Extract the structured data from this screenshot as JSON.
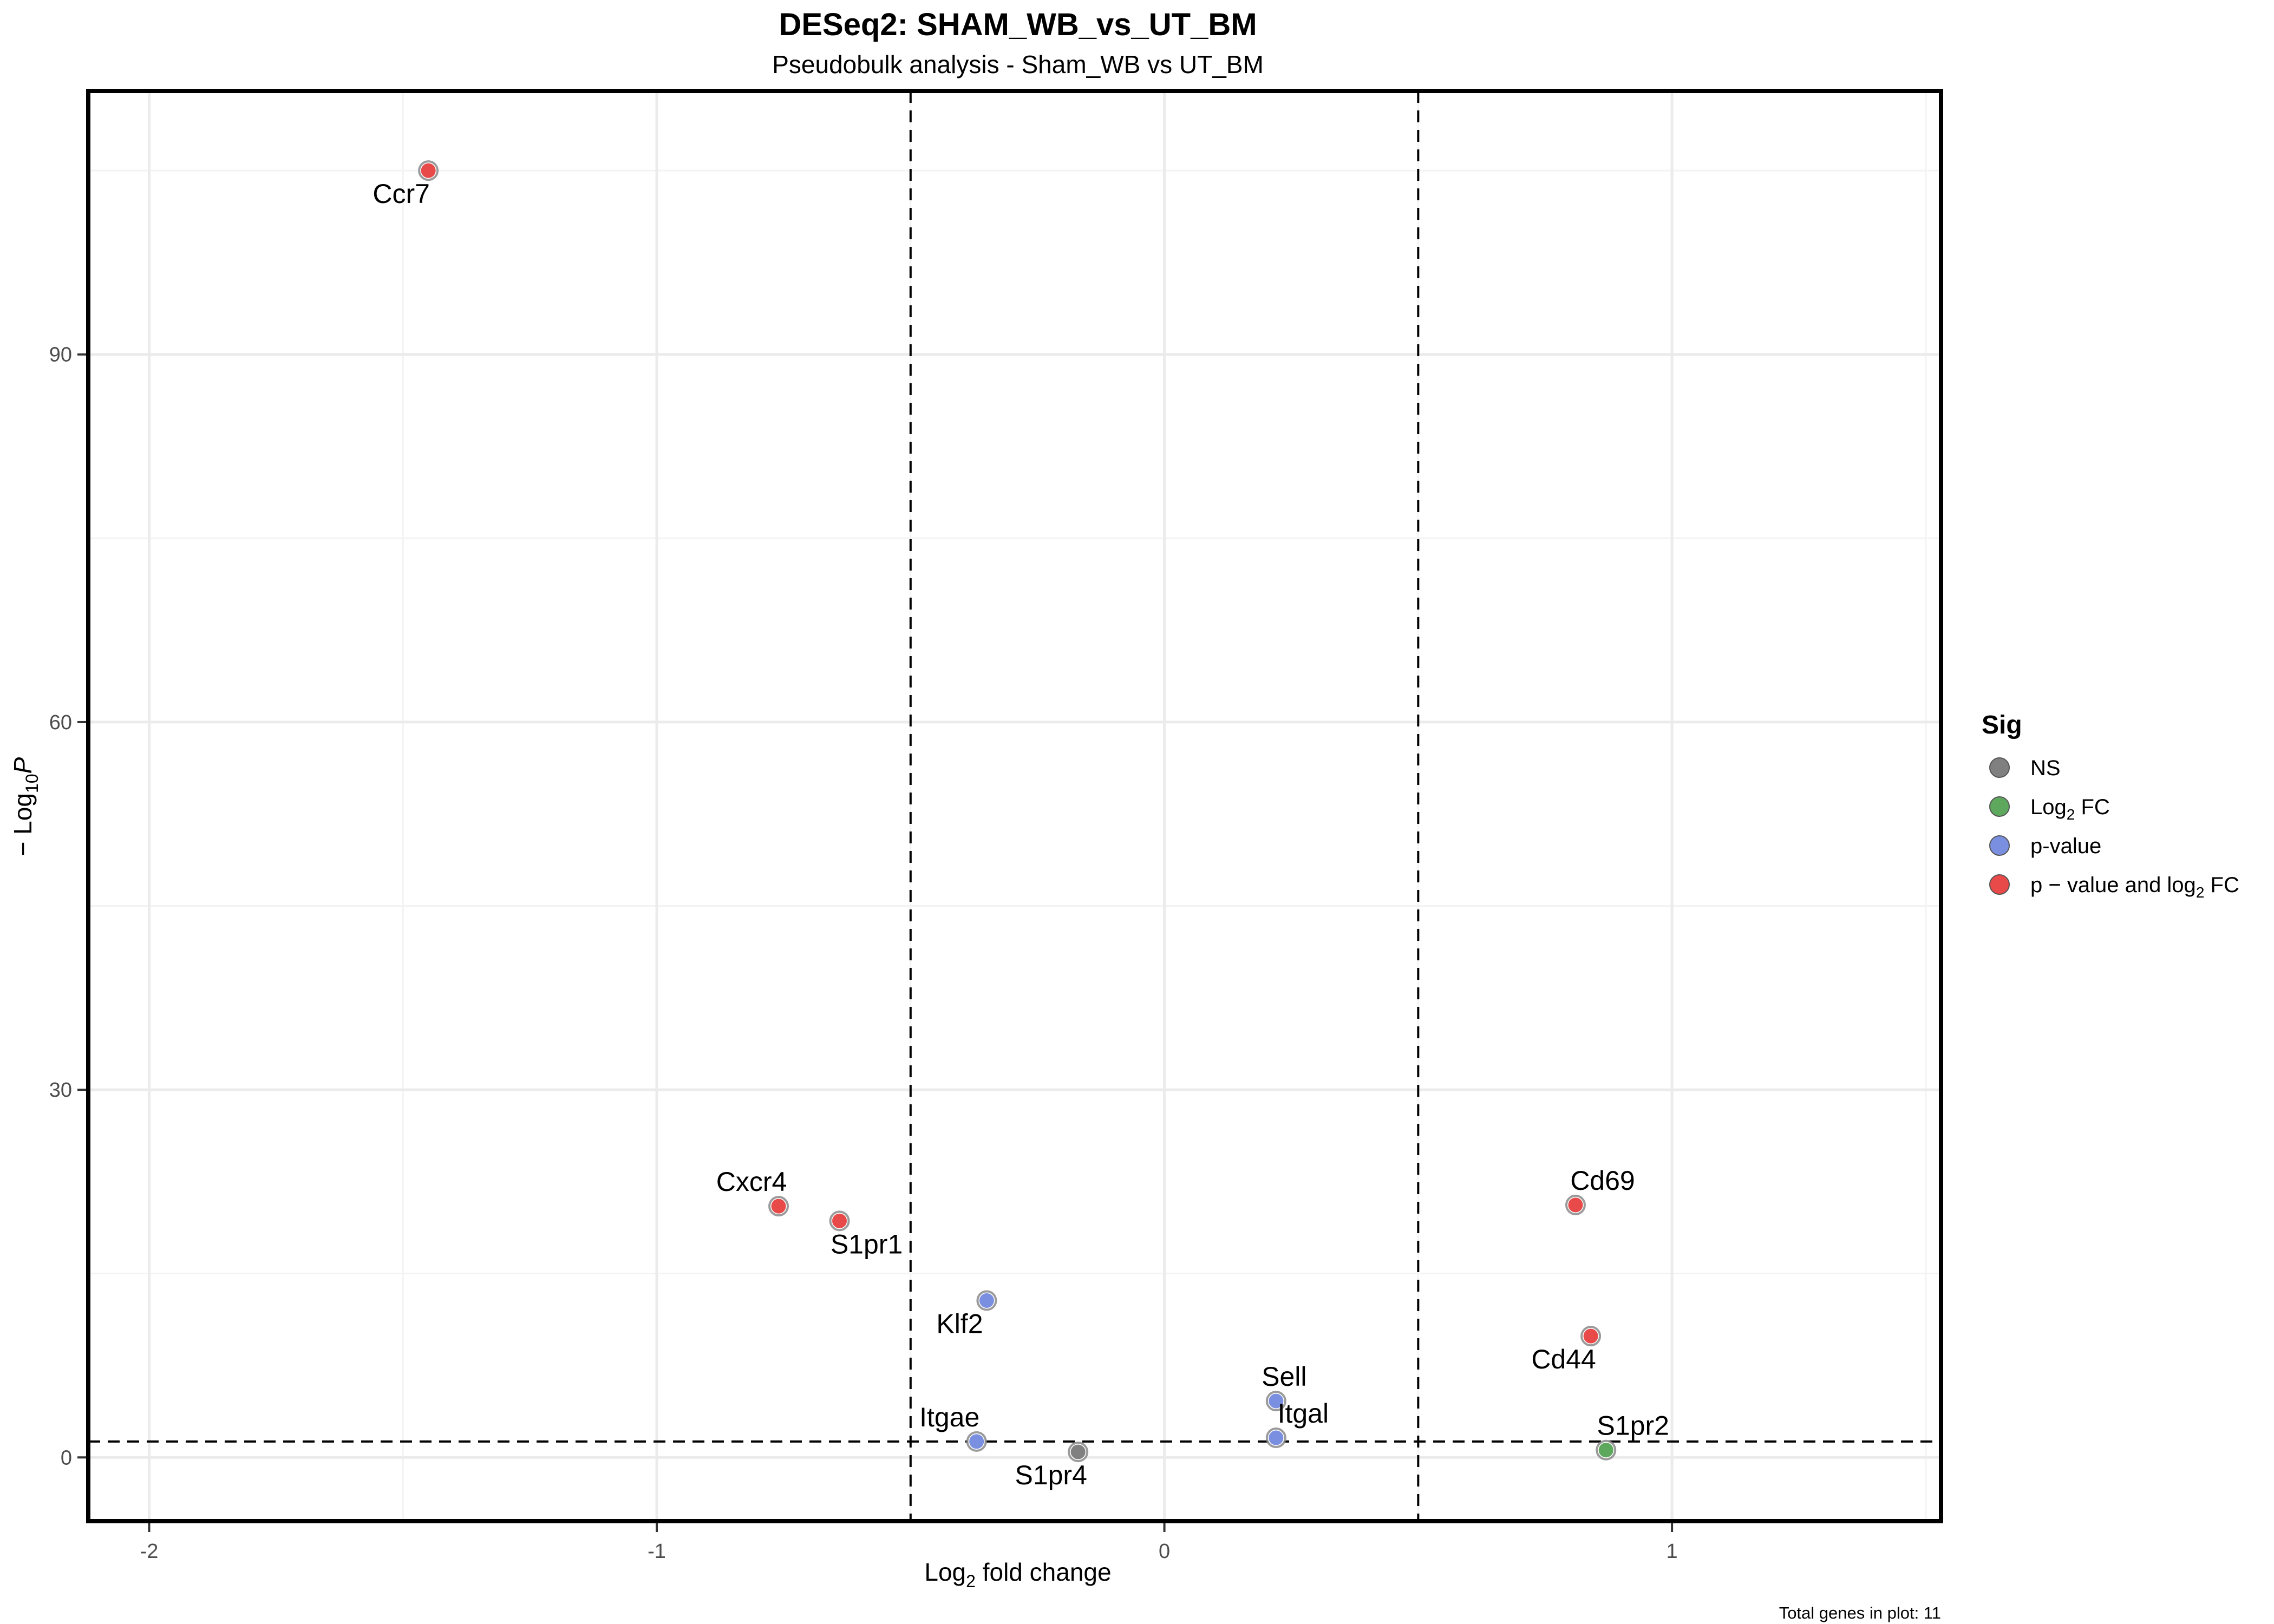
{
  "chart_data": {
    "type": "scatter",
    "title": "DESeq2: SHAM_WB_vs_UT_BM",
    "subtitle": "Pseudobulk analysis - Sham_WB vs UT_BM",
    "xlabel_main": "Log",
    "xlabel_sub": "2",
    "xlabel_rest": " fold change",
    "ylabel_prefix": "− Log",
    "ylabel_sub": "10",
    "ylabel_var": "P",
    "xlim": [
      -2.12,
      1.53
    ],
    "ylim": [
      -5.2,
      111.5
    ],
    "x_ticks": [
      -2,
      -1,
      0,
      1
    ],
    "y_ticks": [
      0,
      30,
      60,
      90
    ],
    "x_tick_labels": [
      "-2",
      "-1",
      "0",
      "1"
    ],
    "y_tick_labels": [
      "0",
      "30",
      "60",
      "90"
    ],
    "grid": true,
    "fc_cutoff": 0.5,
    "p_cutoff_neglog10": 1.3,
    "legend": {
      "title": "Sig",
      "position": "right",
      "items": [
        {
          "key": "NS",
          "parts": [
            "NS",
            "",
            ""
          ],
          "color": "#808080"
        },
        {
          "key": "Log2FC",
          "parts": [
            "Log",
            "2",
            " FC"
          ],
          "color": "#5ea85e"
        },
        {
          "key": "p-value",
          "parts": [
            "p-value",
            "",
            ""
          ],
          "color": "#7b8fe0"
        },
        {
          "key": "both",
          "parts": [
            "p − value and log",
            "2",
            " FC"
          ],
          "color": "#e84a4a"
        }
      ]
    },
    "colors": {
      "NS": "#808080",
      "Log2FC": "#5ea85e",
      "p-value": "#7b8fe0",
      "both": "#e84a4a"
    },
    "points": [
      {
        "gene": "Ccr7",
        "x": -1.45,
        "y": 105.0,
        "sig": "both",
        "label_pos": "below-left"
      },
      {
        "gene": "Cxcr4",
        "x": -0.76,
        "y": 20.5,
        "sig": "both",
        "label_pos": "above-left"
      },
      {
        "gene": "S1pr1",
        "x": -0.64,
        "y": 19.3,
        "sig": "both",
        "label_pos": "below-right"
      },
      {
        "gene": "Klf2",
        "x": -0.35,
        "y": 12.8,
        "sig": "p-value",
        "label_pos": "below-left"
      },
      {
        "gene": "Itgae",
        "x": -0.37,
        "y": 1.3,
        "sig": "p-value",
        "label_pos": "above-left"
      },
      {
        "gene": "S1pr4",
        "x": -0.17,
        "y": 0.45,
        "sig": "NS",
        "label_pos": "below-left"
      },
      {
        "gene": "Sell",
        "x": 0.22,
        "y": 4.6,
        "sig": "p-value",
        "label_pos": "above"
      },
      {
        "gene": "Itgal",
        "x": 0.22,
        "y": 1.6,
        "sig": "p-value",
        "label_pos": "above-right"
      },
      {
        "gene": "Cd69",
        "x": 0.81,
        "y": 20.6,
        "sig": "both",
        "label_pos": "above-right"
      },
      {
        "gene": "Cd44",
        "x": 0.84,
        "y": 9.9,
        "sig": "both",
        "label_pos": "below-left"
      },
      {
        "gene": "S1pr2",
        "x": 0.87,
        "y": 0.6,
        "sig": "Log2FC",
        "label_pos": "above-right"
      }
    ],
    "caption": "Total genes in plot: 11"
  }
}
